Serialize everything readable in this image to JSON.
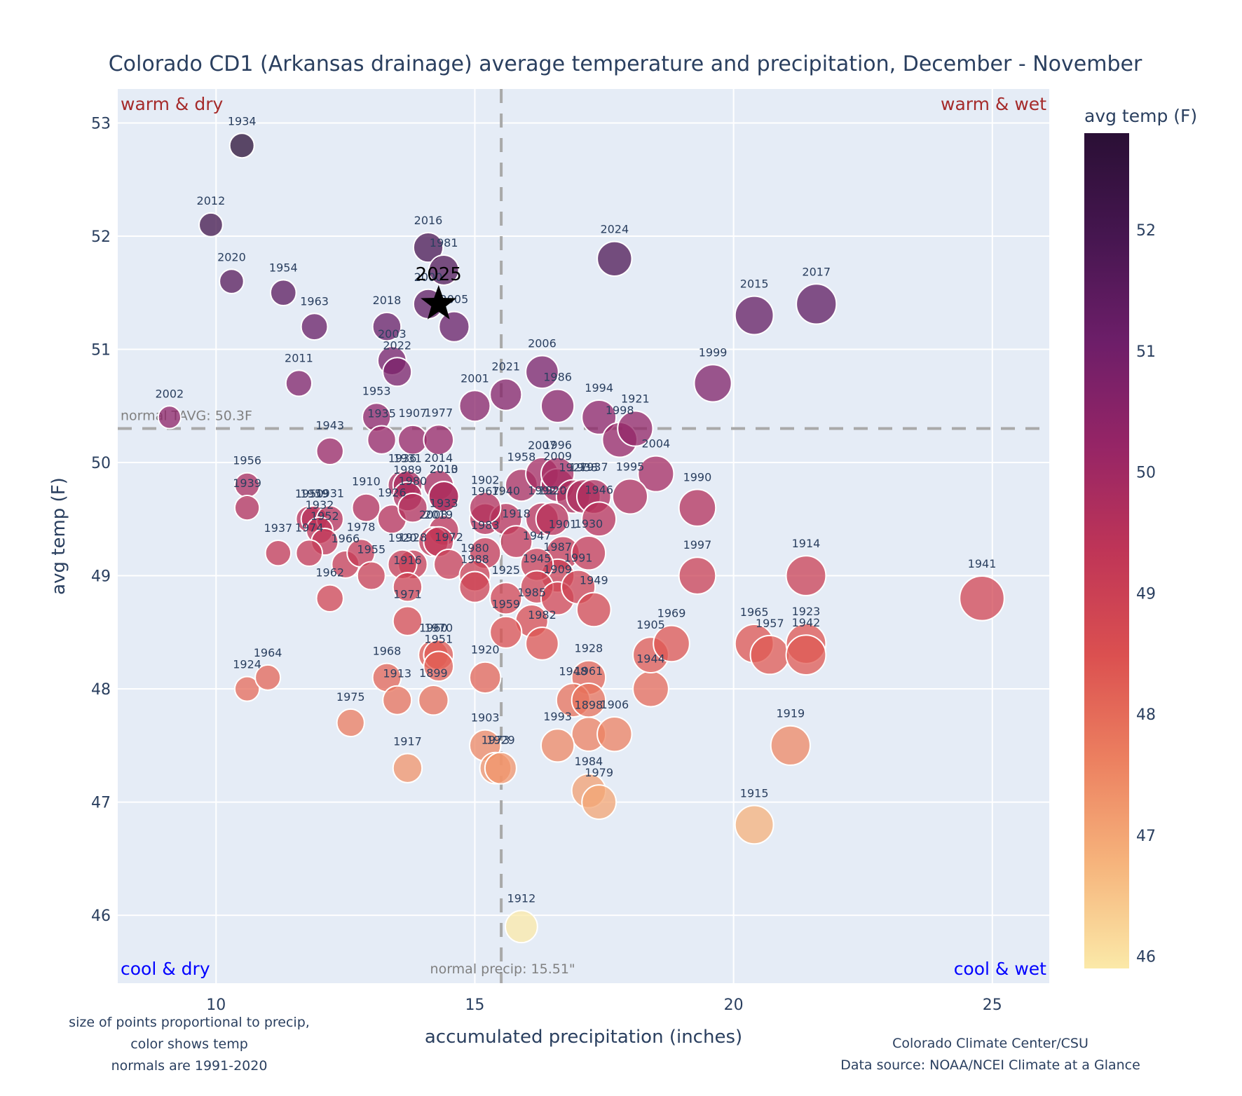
{
  "chart_data": {
    "type": "scatter",
    "title": "Colorado CD1 (Arkansas drainage) average temperature and precipitation, December - November",
    "xlabel": "accumulated precipitation (inches)",
    "ylabel": "avg temp (F)",
    "xlim": [
      8.1,
      26.1
    ],
    "ylim": [
      45.4,
      53.3
    ],
    "xticks": [
      10,
      15,
      20,
      25
    ],
    "yticks": [
      46,
      47,
      48,
      49,
      50,
      51,
      52,
      53
    ],
    "grid": true,
    "colorbar": {
      "title": "avg temp (F)",
      "range": [
        45.9,
        52.8
      ],
      "ticks": [
        46,
        47,
        48,
        49,
        50,
        51,
        52
      ],
      "colorscale": [
        "#fbe9a8",
        "#f6b47c",
        "#ec8060",
        "#db5050",
        "#bf3557",
        "#962566",
        "#6d1e69",
        "#461650",
        "#2a0f35"
      ]
    },
    "normals": {
      "temp": 50.3,
      "temp_label": "normal TAVG: 50.3F",
      "precip": 15.51,
      "precip_label": "normal precip: 15.51\""
    },
    "quadrant_labels": {
      "top_left": "warm & dry",
      "top_right": "warm & wet",
      "bottom_left": "cool & dry",
      "bottom_right": "cool & wet"
    },
    "highlight": {
      "year": "2025",
      "precip": 14.3,
      "temp": 51.4,
      "marker": "star"
    },
    "points": [
      {
        "year": "1934",
        "precip": 10.5,
        "temp": 52.8
      },
      {
        "year": "2012",
        "precip": 9.9,
        "temp": 52.1
      },
      {
        "year": "2020",
        "precip": 10.3,
        "temp": 51.6
      },
      {
        "year": "1954",
        "precip": 11.3,
        "temp": 51.5
      },
      {
        "year": "1963",
        "precip": 11.9,
        "temp": 51.2
      },
      {
        "year": "2011",
        "precip": 11.6,
        "temp": 50.7
      },
      {
        "year": "2002",
        "precip": 9.1,
        "temp": 50.4
      },
      {
        "year": "2016",
        "precip": 14.1,
        "temp": 51.9
      },
      {
        "year": "1981",
        "precip": 14.4,
        "temp": 51.7
      },
      {
        "year": "2000",
        "precip": 14.1,
        "temp": 51.4
      },
      {
        "year": "2005",
        "precip": 14.6,
        "temp": 51.2
      },
      {
        "year": "2018",
        "precip": 13.3,
        "temp": 51.2
      },
      {
        "year": "2003",
        "precip": 13.4,
        "temp": 50.9
      },
      {
        "year": "2022",
        "precip": 13.5,
        "temp": 50.8
      },
      {
        "year": "1953",
        "precip": 13.1,
        "temp": 50.4
      },
      {
        "year": "1935",
        "precip": 13.2,
        "temp": 50.2
      },
      {
        "year": "1907",
        "precip": 13.8,
        "temp": 50.2
      },
      {
        "year": "1977",
        "precip": 14.3,
        "temp": 50.2
      },
      {
        "year": "2001",
        "precip": 15.0,
        "temp": 50.5
      },
      {
        "year": "2021",
        "precip": 15.6,
        "temp": 50.6
      },
      {
        "year": "2006",
        "precip": 16.3,
        "temp": 50.8
      },
      {
        "year": "1986",
        "precip": 16.6,
        "temp": 50.5
      },
      {
        "year": "1994",
        "precip": 17.4,
        "temp": 50.4
      },
      {
        "year": "1998",
        "precip": 17.8,
        "temp": 50.2
      },
      {
        "year": "1921",
        "precip": 18.1,
        "temp": 50.3
      },
      {
        "year": "2004",
        "precip": 18.5,
        "temp": 49.9
      },
      {
        "year": "2024",
        "precip": 17.7,
        "temp": 51.8
      },
      {
        "year": "2015",
        "precip": 20.4,
        "temp": 51.3
      },
      {
        "year": "2017",
        "precip": 21.6,
        "temp": 51.4
      },
      {
        "year": "1999",
        "precip": 19.6,
        "temp": 50.7
      },
      {
        "year": "1990",
        "precip": 19.3,
        "temp": 49.6
      },
      {
        "year": "1943",
        "precip": 12.2,
        "temp": 50.1
      },
      {
        "year": "1956",
        "precip": 10.6,
        "temp": 49.8
      },
      {
        "year": "1939",
        "precip": 10.6,
        "temp": 49.6
      },
      {
        "year": "1950",
        "precip": 11.8,
        "temp": 49.5
      },
      {
        "year": "1959",
        "precip": 11.9,
        "temp": 49.5
      },
      {
        "year": "1931",
        "precip": 12.2,
        "temp": 49.5
      },
      {
        "year": "1932",
        "precip": 12.0,
        "temp": 49.4
      },
      {
        "year": "1952",
        "precip": 12.1,
        "temp": 49.3
      },
      {
        "year": "1937",
        "precip": 11.2,
        "temp": 49.2
      },
      {
        "year": "1974",
        "precip": 11.8,
        "temp": 49.2
      },
      {
        "year": "1966",
        "precip": 12.5,
        "temp": 49.1
      },
      {
        "year": "1978",
        "precip": 12.8,
        "temp": 49.2
      },
      {
        "year": "1955",
        "precip": 13.0,
        "temp": 49.0
      },
      {
        "year": "1962",
        "precip": 12.2,
        "temp": 48.8
      },
      {
        "year": "1910",
        "precip": 12.9,
        "temp": 49.6
      },
      {
        "year": "1926",
        "precip": 13.4,
        "temp": 49.5
      },
      {
        "year": "1936",
        "precip": 13.6,
        "temp": 49.8
      },
      {
        "year": "1931b",
        "label": "1931",
        "precip": 13.7,
        "temp": 49.8
      },
      {
        "year": "1980b",
        "label": "1989",
        "precip": 13.7,
        "temp": 49.7
      },
      {
        "year": "1989",
        "label": "1980",
        "precip": 13.8,
        "temp": 49.6
      },
      {
        "year": "2014",
        "precip": 14.3,
        "temp": 49.8
      },
      {
        "year": "2013",
        "precip": 14.4,
        "temp": 49.7
      },
      {
        "year": "2010",
        "precip": 14.4,
        "temp": 49.7
      },
      {
        "year": "1933",
        "precip": 14.4,
        "temp": 49.4
      },
      {
        "year": "2008",
        "precip": 14.2,
        "temp": 49.3
      },
      {
        "year": "2019",
        "precip": 14.3,
        "temp": 49.3
      },
      {
        "year": "1928",
        "precip": 13.8,
        "temp": 49.1
      },
      {
        "year": "1920",
        "precip": 13.6,
        "temp": 49.1
      },
      {
        "year": "1972",
        "precip": 14.5,
        "temp": 49.1
      },
      {
        "year": "1916",
        "precip": 13.7,
        "temp": 48.9
      },
      {
        "year": "1971",
        "precip": 13.7,
        "temp": 48.6
      },
      {
        "year": "1983",
        "precip": 15.2,
        "temp": 49.2
      },
      {
        "year": "1980",
        "precip": 15.0,
        "temp": 49.0
      },
      {
        "year": "1988",
        "precip": 15.0,
        "temp": 48.9
      },
      {
        "year": "1967",
        "precip": 15.2,
        "temp": 49.5
      },
      {
        "year": "1940",
        "precip": 15.6,
        "temp": 49.5
      },
      {
        "year": "1902",
        "precip": 15.2,
        "temp": 49.6
      },
      {
        "year": "1958",
        "precip": 15.9,
        "temp": 49.8
      },
      {
        "year": "2007",
        "precip": 16.3,
        "temp": 49.9
      },
      {
        "year": "2009",
        "precip": 16.6,
        "temp": 49.8
      },
      {
        "year": "1996",
        "precip": 16.6,
        "temp": 49.9
      },
      {
        "year": "1927",
        "precip": 16.9,
        "temp": 49.7
      },
      {
        "year": "1938",
        "precip": 17.1,
        "temp": 49.7
      },
      {
        "year": "1937b",
        "label": "1937",
        "precip": 17.3,
        "temp": 49.7
      },
      {
        "year": "1995",
        "precip": 18.0,
        "temp": 49.7
      },
      {
        "year": "1992",
        "precip": 16.3,
        "temp": 49.5
      },
      {
        "year": "1920b",
        "label": "1920",
        "precip": 16.5,
        "temp": 49.5
      },
      {
        "year": "1946",
        "precip": 17.4,
        "temp": 49.5
      },
      {
        "year": "1901",
        "precip": 16.7,
        "temp": 49.2
      },
      {
        "year": "1930",
        "precip": 17.2,
        "temp": 49.2
      },
      {
        "year": "1987",
        "precip": 16.6,
        "temp": 49.0
      },
      {
        "year": "1918",
        "precip": 15.8,
        "temp": 49.3
      },
      {
        "year": "1947",
        "precip": 16.2,
        "temp": 49.1
      },
      {
        "year": "1925",
        "precip": 15.6,
        "temp": 48.8
      },
      {
        "year": "1945",
        "precip": 16.2,
        "temp": 48.9
      },
      {
        "year": "1909",
        "precip": 16.6,
        "temp": 48.8
      },
      {
        "year": "1991",
        "precip": 17.0,
        "temp": 48.9
      },
      {
        "year": "1949",
        "precip": 17.3,
        "temp": 48.7
      },
      {
        "year": "1985",
        "precip": 16.1,
        "temp": 48.6
      },
      {
        "year": "1959b",
        "label": "1959",
        "precip": 15.6,
        "temp": 48.5
      },
      {
        "year": "1982",
        "precip": 16.3,
        "temp": 48.4
      },
      {
        "year": "1960",
        "precip": 14.2,
        "temp": 48.3
      },
      {
        "year": "1970",
        "precip": 14.3,
        "temp": 48.3
      },
      {
        "year": "1951",
        "precip": 14.3,
        "temp": 48.2
      },
      {
        "year": "1968",
        "precip": 13.3,
        "temp": 48.1
      },
      {
        "year": "1913",
        "precip": 13.5,
        "temp": 47.9
      },
      {
        "year": "1899",
        "precip": 14.2,
        "temp": 47.9
      },
      {
        "year": "1920c",
        "label": "1920",
        "precip": 15.2,
        "temp": 48.1
      },
      {
        "year": "1928b",
        "label": "1928",
        "precip": 17.2,
        "temp": 48.1
      },
      {
        "year": "1948",
        "precip": 16.9,
        "temp": 47.9
      },
      {
        "year": "1961",
        "precip": 17.2,
        "temp": 47.9
      },
      {
        "year": "1898",
        "precip": 17.2,
        "temp": 47.6
      },
      {
        "year": "1906",
        "precip": 17.7,
        "temp": 47.6
      },
      {
        "year": "1993",
        "precip": 16.6,
        "temp": 47.5
      },
      {
        "year": "1944",
        "precip": 18.4,
        "temp": 48.0
      },
      {
        "year": "1905",
        "precip": 18.4,
        "temp": 48.3
      },
      {
        "year": "1969",
        "precip": 18.8,
        "temp": 48.4
      },
      {
        "year": "1924",
        "precip": 10.6,
        "temp": 48.0
      },
      {
        "year": "1964",
        "precip": 11.0,
        "temp": 48.1
      },
      {
        "year": "1975",
        "precip": 12.6,
        "temp": 47.7
      },
      {
        "year": "1917",
        "precip": 13.7,
        "temp": 47.3
      },
      {
        "year": "1903",
        "precip": 15.2,
        "temp": 47.5
      },
      {
        "year": "1973",
        "precip": 15.4,
        "temp": 47.3
      },
      {
        "year": "1929",
        "precip": 15.5,
        "temp": 47.3
      },
      {
        "year": "1984",
        "precip": 17.2,
        "temp": 47.1
      },
      {
        "year": "1979",
        "precip": 17.4,
        "temp": 47.0
      },
      {
        "year": "1912",
        "precip": 15.9,
        "temp": 45.9
      },
      {
        "year": "1997",
        "precip": 19.3,
        "temp": 49.0
      },
      {
        "year": "1914",
        "precip": 21.4,
        "temp": 49.0
      },
      {
        "year": "1941",
        "precip": 24.8,
        "temp": 48.8
      },
      {
        "year": "1965",
        "precip": 20.4,
        "temp": 48.4
      },
      {
        "year": "1957",
        "precip": 20.7,
        "temp": 48.3
      },
      {
        "year": "1923",
        "precip": 21.4,
        "temp": 48.4
      },
      {
        "year": "1942",
        "precip": 21.4,
        "temp": 48.3
      },
      {
        "year": "1919",
        "precip": 21.1,
        "temp": 47.5
      },
      {
        "year": "1915",
        "precip": 20.4,
        "temp": 46.8
      }
    ]
  },
  "notes": {
    "left_1": "size of points proportional to precip,",
    "left_2": "color shows temp",
    "left_3": "normals are 1991-2020",
    "right_1": "Colorado Climate Center/CSU",
    "right_2": "Data source: NOAA/NCEI Climate at a Glance"
  }
}
